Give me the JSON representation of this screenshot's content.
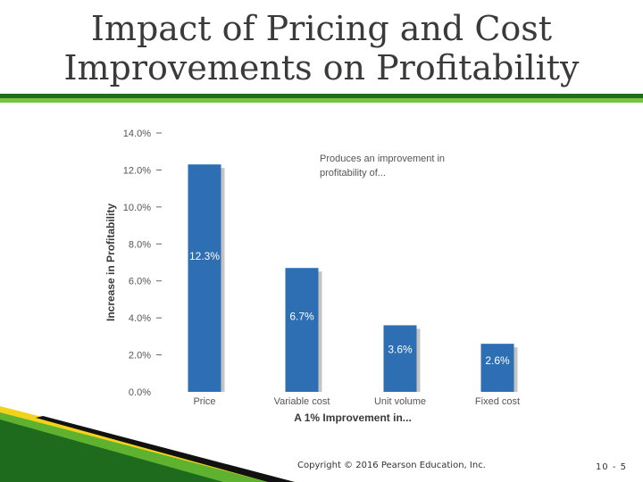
{
  "slide": {
    "title_line1": "Impact of Pricing and Cost",
    "title_line2": "Improvements on Profitability",
    "copyright": "Copyright © 2016 Pearson Education, Inc.",
    "slide_number": "10 - 5",
    "accent_dark": "#1f6e1f",
    "accent_light": "#77c23f"
  },
  "chart_data": {
    "type": "bar",
    "title": "",
    "annotation": [
      "Produces an improvement in",
      "profitability of..."
    ],
    "xlabel": "A 1% Improvement in...",
    "ylabel": "Increase in Profitability",
    "categories": [
      "Price",
      "Variable cost",
      "Unit volume",
      "Fixed cost"
    ],
    "values": [
      12.3,
      6.7,
      3.6,
      2.6
    ],
    "value_labels": [
      "12.3%",
      "6.7%",
      "3.6%",
      "2.6%"
    ],
    "ylim": [
      0,
      14
    ],
    "yticks": [
      0,
      2,
      4,
      6,
      8,
      10,
      12,
      14
    ],
    "ytick_labels": [
      "0.0%",
      "2.0%",
      "4.0%",
      "6.0%",
      "8.0%",
      "10.0%",
      "12.0%",
      "14.0%"
    ],
    "bar_color": "#2e6fb4",
    "shadow_color": "#c4c4c4",
    "grid": false,
    "legend": "none"
  }
}
